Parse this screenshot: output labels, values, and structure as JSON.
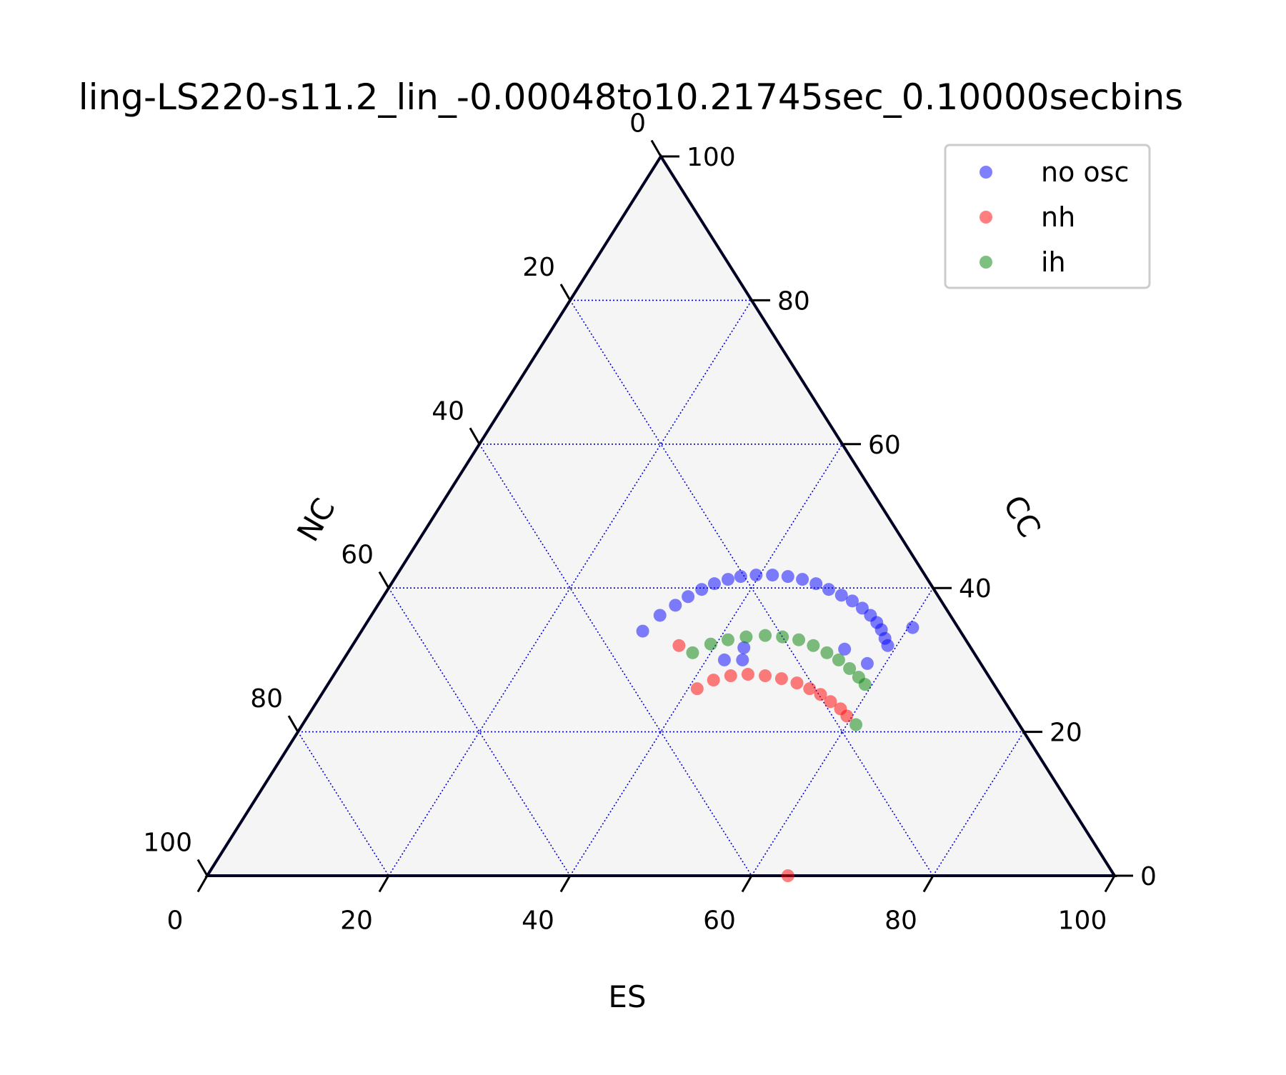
{
  "chart_data": {
    "type": "scatter",
    "subtype": "ternary",
    "title": "ling-LS220-s11.2_lin_-0.00048to10.21745sec_0.10000secbins",
    "axes": {
      "bottom": {
        "label": "ES",
        "ticks": [
          "0",
          "20",
          "40",
          "60",
          "80",
          "100"
        ]
      },
      "right": {
        "label": "CC",
        "ticks": [
          "0",
          "20",
          "40",
          "60",
          "80",
          "100"
        ]
      },
      "left": {
        "label": "NC",
        "ticks": [
          "0",
          "20",
          "40",
          "60",
          "80",
          "100"
        ]
      },
      "range": [
        0,
        100
      ],
      "grid": true,
      "grid_step": 20
    },
    "legend": {
      "placement": "top-right"
    },
    "colors": {
      "background": "#f5f5f5",
      "grid": "#0000cc",
      "frame": "#000022"
    },
    "series": [
      {
        "name": "no osc",
        "color": "#0000ff",
        "points": [
          [
            31.0,
            34.0,
            35.0
          ],
          [
            31.8,
            36.2,
            32.0
          ],
          [
            32.8,
            37.6,
            29.6
          ],
          [
            33.6,
            38.8,
            27.6
          ],
          [
            34.6,
            39.8,
            25.6
          ],
          [
            35.6,
            40.6,
            23.8
          ],
          [
            36.8,
            41.2,
            22.0
          ],
          [
            38.0,
            41.6,
            20.4
          ],
          [
            39.6,
            41.8,
            18.6
          ],
          [
            41.4,
            41.8,
            16.8
          ],
          [
            43.2,
            41.6,
            15.2
          ],
          [
            45.0,
            41.2,
            13.8
          ],
          [
            46.8,
            40.6,
            12.6
          ],
          [
            48.6,
            39.8,
            11.6
          ],
          [
            50.4,
            39.0,
            10.6
          ],
          [
            52.0,
            38.2,
            9.8
          ],
          [
            53.6,
            37.2,
            9.2
          ],
          [
            55.0,
            36.2,
            8.8
          ],
          [
            56.2,
            35.2,
            8.6
          ],
          [
            57.2,
            34.2,
            8.6
          ],
          [
            58.2,
            33.0,
            8.8
          ],
          [
            59.0,
            32.0,
            9.0
          ],
          [
            54.5,
            31.5,
            14.0
          ],
          [
            43.3,
            31.7,
            25.0
          ],
          [
            42.0,
            30.0,
            28.0
          ],
          [
            44.0,
            30.0,
            26.0
          ],
          [
            60.5,
            34.5,
            5.0
          ],
          [
            58.0,
            29.5,
            12.5
          ]
        ]
      },
      {
        "name": "nh",
        "color": "#ff0000",
        "points": [
          [
            41.0,
            26.0,
            33.0
          ],
          [
            42.2,
            27.2,
            30.6
          ],
          [
            43.8,
            27.8,
            28.4
          ],
          [
            45.6,
            28.0,
            26.4
          ],
          [
            47.6,
            27.8,
            24.6
          ],
          [
            49.6,
            27.4,
            23.0
          ],
          [
            51.6,
            26.8,
            21.6
          ],
          [
            53.4,
            26.0,
            20.6
          ],
          [
            55.0,
            25.2,
            19.8
          ],
          [
            56.6,
            24.2,
            19.2
          ],
          [
            58.2,
            23.2,
            18.6
          ],
          [
            59.4,
            22.2,
            18.4
          ],
          [
            36.0,
            32.0,
            32.0
          ],
          [
            64.0,
            0.0,
            36.0
          ]
        ]
      },
      {
        "name": "ih",
        "color": "#008000",
        "points": [
          [
            38.0,
            31.0,
            31.0
          ],
          [
            39.4,
            32.2,
            28.4
          ],
          [
            41.0,
            32.8,
            26.2
          ],
          [
            42.8,
            33.2,
            24.0
          ],
          [
            44.8,
            33.4,
            21.8
          ],
          [
            46.8,
            33.2,
            20.0
          ],
          [
            48.8,
            32.8,
            18.4
          ],
          [
            50.8,
            32.0,
            17.2
          ],
          [
            52.8,
            31.0,
            16.2
          ],
          [
            54.6,
            30.0,
            15.4
          ],
          [
            56.4,
            28.8,
            14.8
          ],
          [
            58.0,
            27.6,
            14.4
          ],
          [
            59.2,
            26.6,
            14.2
          ],
          [
            61.0,
            21.0,
            18.0
          ]
        ]
      }
    ]
  }
}
